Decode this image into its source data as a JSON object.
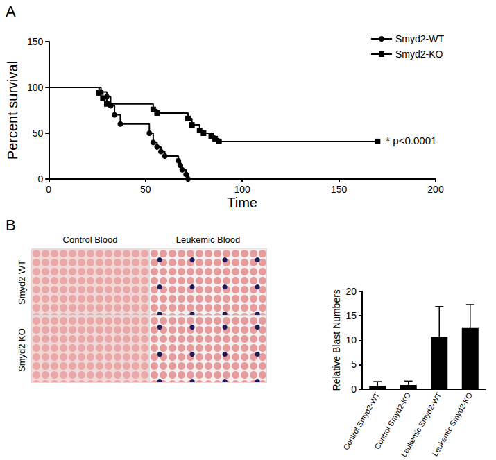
{
  "chart_data": [
    {
      "type": "step",
      "panel": "A",
      "x_label": "Time",
      "y_label": "Percent survival",
      "xlim": [
        0,
        200
      ],
      "xticks": [
        0,
        50,
        100,
        150,
        200
      ],
      "ylim": [
        0,
        150
      ],
      "yticks": [
        0,
        50,
        100,
        150
      ],
      "grid": false,
      "legend": "top-right",
      "annotation": "* p<0.0001",
      "series": [
        {
          "name": "Smyd2-WT",
          "color": "#000000",
          "marker": "circle",
          "x": [
            0,
            27,
            30,
            32,
            34,
            37,
            52,
            54,
            56,
            58,
            60,
            67,
            68,
            69,
            71,
            72
          ],
          "values": [
            100,
            95,
            90,
            80,
            70,
            60,
            50,
            40,
            35,
            30,
            25,
            20,
            15,
            10,
            5,
            0
          ]
        },
        {
          "name": "Smyd2-KO",
          "color": "#000000",
          "marker": "square",
          "x": [
            0,
            26,
            28,
            30,
            54,
            56,
            72,
            74,
            78,
            80,
            84,
            86,
            88,
            170
          ],
          "values": [
            100,
            94,
            88,
            82,
            76,
            72,
            66,
            59,
            53,
            50,
            47,
            44,
            41,
            41
          ]
        }
      ]
    },
    {
      "type": "bar",
      "panel": "B",
      "y_label": "Relative Blast Numbers",
      "images": {
        "columns": [
          "Control Blood",
          "Leukemic Blood"
        ],
        "rows": [
          "Smyd2 WT",
          "Smyd2 KO"
        ]
      },
      "categories": [
        "Control Smyd2-WT",
        "Control Smyd2-KO",
        "Leukemic Smyd2-WT",
        "Leukemic Smyd2-KO"
      ],
      "values": [
        0.6,
        0.8,
        10.7,
        12.5
      ],
      "errors": [
        0.9,
        0.8,
        6.2,
        4.8
      ],
      "color": "#000000",
      "ylim": [
        0,
        20
      ],
      "yticks": [
        0,
        5,
        10,
        15,
        20
      ],
      "grid": false
    }
  ]
}
